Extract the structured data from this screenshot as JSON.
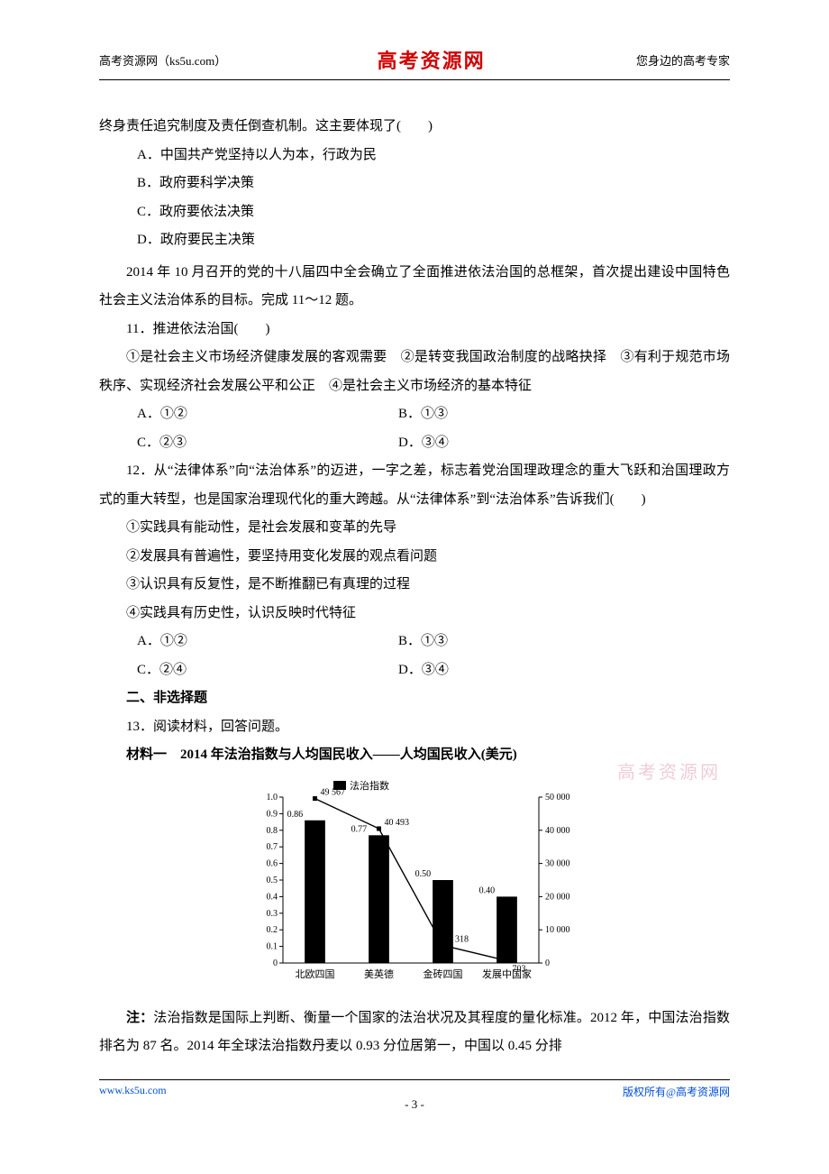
{
  "header": {
    "left": "高考资源网（ks5u.com）",
    "center": "高考资源网",
    "right": "您身边的高考专家"
  },
  "lead_in": "终身责任追究制度及责任倒查机制。这主要体现了(　　)",
  "q_opts_abcd": {
    "A": "A．中国共产党坚持以人为本，行政为民",
    "B": "B．政府要科学决策",
    "C": "C．政府要依法决策",
    "D": "D．政府要民主决策"
  },
  "passage": "2014 年 10 月召开的党的十八届四中全会确立了全面推进依法治国的总框架，首次提出建设中国特色社会主义法治体系的目标。完成 11～12 题。",
  "q11": {
    "stem": "11．推进依法治国(　　)",
    "statements": "①是社会主义市场经济健康发展的客观需要　②是转变我国政治制度的战略抉择　③有利于规范市场秩序、实现经济社会发展公平和公正　④是社会主义市场经济的基本特征",
    "row1": {
      "A": "A．①②",
      "B": "B．①③"
    },
    "row2": {
      "C": "C．②③",
      "D": "D．③④"
    }
  },
  "q12": {
    "stem": "12．从“法律体系”向“法治体系”的迈进，一字之差，标志着党治国理政理念的重大飞跃和治国理政方式的重大转型，也是国家治理现代化的重大跨越。从“法律体系”到“法治体系”告诉我们(　　)",
    "s1": "①实践具有能动性，是社会发展和变革的先导",
    "s2": "②发展具有普遍性，要坚持用变化发展的观点看问题",
    "s3": "③认识具有反复性，是不断推翻已有真理的过程",
    "s4": "④实践具有历史性，认识反映时代特征",
    "row1": {
      "A": "A．①②",
      "B": "B．①③"
    },
    "row2": {
      "C": "C．②④",
      "D": "D．③④"
    }
  },
  "section2": "二、非选择题",
  "q13_stem": "13．阅读材料，回答问题。",
  "material_title": "材料一　2014 年法治指数与人均国民收入——人均国民收入(美元)",
  "watermark": "高考资源网",
  "chart": {
    "type": "bar+line",
    "legend": "法治指数",
    "categories": [
      "北欧四国",
      "美英德",
      "金砖四国",
      "发展中国家"
    ],
    "bar_values": [
      0.86,
      0.77,
      0.5,
      0.4
    ],
    "line_values": [
      49567,
      40493,
      5318,
      703
    ],
    "bar_color": "#000000",
    "line_color": "#000000",
    "grid_color": "#000000",
    "y_left": {
      "min": 0,
      "max": 1.0,
      "step": 0.1,
      "labels": [
        "0",
        "0.1",
        "0.2",
        "0.3",
        "0.4",
        "0.5",
        "0.6",
        "0.7",
        "0.8",
        "0.9",
        "1.0"
      ]
    },
    "y_right": {
      "min": 0,
      "max": 50000,
      "step": 10000,
      "labels": [
        "0",
        "10 000",
        "20 000",
        "30 000",
        "40 000",
        "50 000"
      ]
    },
    "value_labels_bar": [
      "0.86",
      "0.77",
      "0.50",
      "0.40"
    ],
    "value_labels_line": [
      "49 567",
      "40 493",
      "5 318",
      "703"
    ],
    "label_fontsize": 10,
    "bar_width": 0.32
  },
  "note": "注：法治指数是国际上判断、衡量一个国家的法治状况及其程度的量化标准。2012 年，中国法治指数排名为 87 名。2014 年全球法治指数丹麦以 0.93 分位居第一，中国以 0.45 分排",
  "footer": {
    "left": "www.ks5u.com",
    "right": "版权所有@高考资源网",
    "page": "- 3 -"
  }
}
